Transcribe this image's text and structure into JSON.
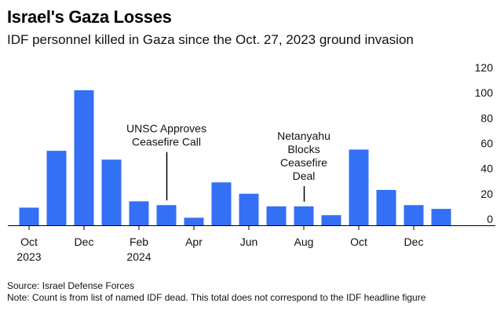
{
  "title": "Israel's Gaza Losses",
  "subtitle": "IDF personnel killed in Gaza since the Oct. 27, 2023 ground invasion",
  "source": "Source: Israel Defense Forces",
  "note": "Note: Count is from list of named IDF dead. This total does not correspond to the IDF headline figure",
  "chart_data": {
    "type": "bar",
    "bar_color": "#3370f5",
    "categories": [
      "2023-10",
      "2023-11",
      "2023-12",
      "2024-01",
      "2024-02",
      "2024-03",
      "2024-04",
      "2024-05",
      "2024-06",
      "2024-07",
      "2024-08",
      "2024-09",
      "2024-10",
      "2024-11",
      "2024-12",
      "2025-01"
    ],
    "values": [
      14,
      59,
      107,
      52,
      19,
      16,
      6,
      34,
      25,
      15,
      15,
      8,
      60,
      28,
      16,
      13
    ],
    "ylim": [
      0,
      120
    ],
    "yticks": [
      0,
      20,
      40,
      60,
      80,
      100,
      120
    ],
    "y_axis_position": "right",
    "grid": false,
    "xtick_labels": [
      {
        "index": 0,
        "lines": [
          "Oct",
          "2023"
        ]
      },
      {
        "index": 2,
        "lines": [
          "Dec"
        ]
      },
      {
        "index": 4,
        "lines": [
          "Feb",
          "2024"
        ]
      },
      {
        "index": 6,
        "lines": [
          "Apr"
        ]
      },
      {
        "index": 8,
        "lines": [
          "Jun"
        ]
      },
      {
        "index": 10,
        "lines": [
          "Aug"
        ]
      },
      {
        "index": 12,
        "lines": [
          "Oct"
        ]
      },
      {
        "index": 14,
        "lines": [
          "Dec"
        ]
      }
    ],
    "annotations": [
      {
        "index": 5,
        "lines": [
          "UNSC Approves",
          "Ceasefire Call"
        ],
        "value": 58
      },
      {
        "index": 10,
        "lines": [
          "Netanyahu",
          "Blocks",
          "Ceasefire",
          "Deal"
        ],
        "value": 31
      }
    ]
  }
}
